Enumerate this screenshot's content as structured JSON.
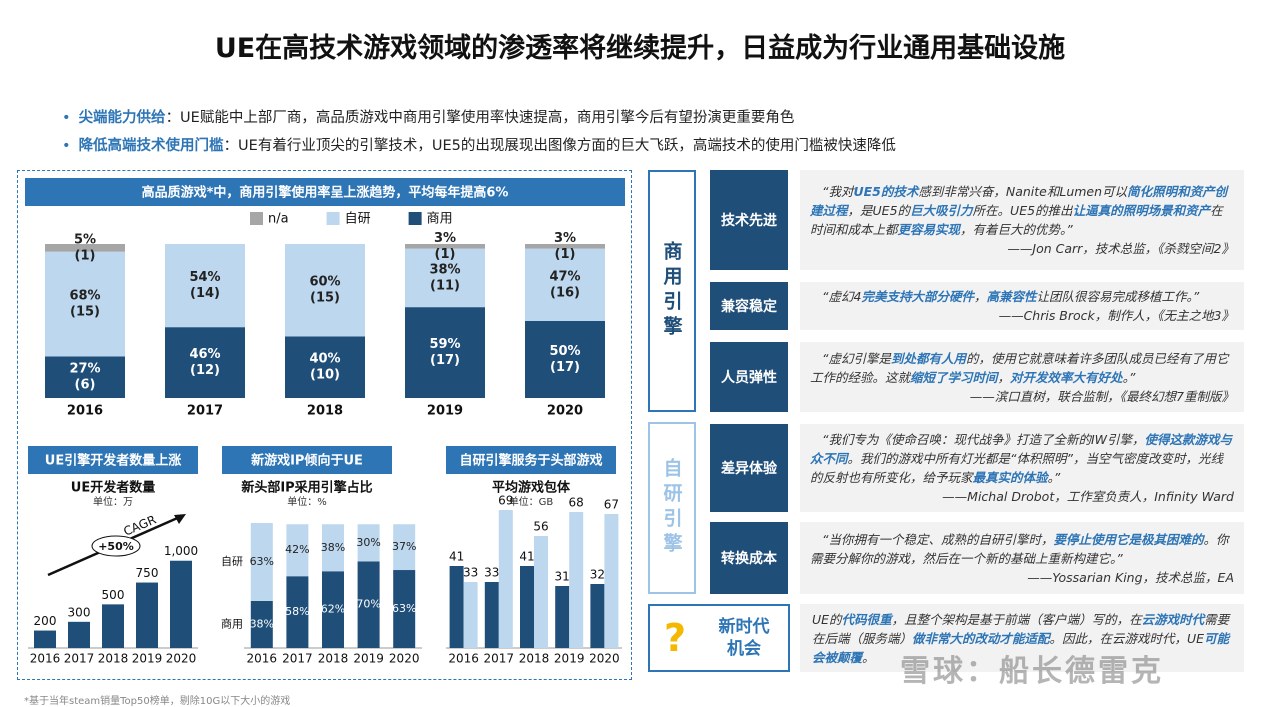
{
  "title": "UE在高技术游戏领域的渗透率将继续提升，日益成为行业通用基础设施",
  "bullets": [
    {
      "label": "尖端能力供给",
      "text": "：UE赋能中上部厂商，高品质游戏中商用引擎使用率快速提高，商用引擎今后有望扮演更重要角色"
    },
    {
      "label": "降低高端技术使用门槛",
      "text": "：UE有着行业顶尖的引擎技术，UE5的出现展现出图像方面的巨大飞跃，高端技术的使用门槛被快速降低"
    }
  ],
  "chart_data": [
    {
      "type": "bar",
      "stacked": true,
      "title": "高品质游戏*中，商用引擎使用率呈上涨趋势，平均每年提高6%",
      "categories": [
        "2016",
        "2017",
        "2018",
        "2019",
        "2020"
      ],
      "ylim": [
        0,
        100
      ],
      "series": [
        {
          "name": "n/a",
          "color": "#a6a6a6",
          "values": [
            5,
            null,
            null,
            3,
            3
          ],
          "value_labels": [
            "5%",
            null,
            null,
            "3%",
            "3%"
          ],
          "counts": [
            1,
            null,
            null,
            1,
            1
          ],
          "count_labels": [
            "(1)",
            null,
            null,
            "(1)",
            "(1)"
          ]
        },
        {
          "name": "自研",
          "color": "#bdd7ee",
          "values": [
            68,
            54,
            60,
            38,
            47
          ],
          "value_labels": [
            "68%",
            "54%",
            "60%",
            "38%",
            "47%"
          ],
          "counts": [
            15,
            14,
            15,
            11,
            16
          ],
          "count_labels": [
            "(15)",
            "(14)",
            "(15)",
            "(11)",
            "(16)"
          ]
        },
        {
          "name": "商用",
          "color": "#1f4e79",
          "values": [
            27,
            46,
            40,
            59,
            50
          ],
          "value_labels": [
            "27%",
            "46%",
            "40%",
            "59%",
            "50%"
          ],
          "counts": [
            6,
            12,
            10,
            17,
            17
          ],
          "count_labels": [
            "(6)",
            "(12)",
            "(10)",
            "(17)",
            "(17)"
          ]
        }
      ]
    },
    {
      "type": "bar",
      "title": "UE引擎开发者数量上涨",
      "subtitle": "UE开发者数量",
      "unit": "单位：万",
      "categories": [
        "2016",
        "2017",
        "2018",
        "2019",
        "2020"
      ],
      "values": [
        200,
        300,
        500,
        750,
        1000
      ],
      "value_labels": [
        "200",
        "300",
        "500",
        "750",
        "1,000"
      ],
      "color": "#1f4e79",
      "ylim": [
        0,
        1100
      ],
      "annotations": [
        "CAGR",
        "+50%"
      ]
    },
    {
      "type": "bar",
      "stacked": true,
      "title": "新游戏IP倾向于UE",
      "subtitle": "新头部IP采用引擎占比",
      "unit": "单位：%",
      "categories": [
        "2016",
        "2017",
        "2018",
        "2019",
        "2020"
      ],
      "ylim": [
        0,
        101
      ],
      "series": [
        {
          "name": "自研",
          "color": "#bdd7ee",
          "values": [
            63,
            42,
            38,
            30,
            37
          ],
          "value_labels": [
            "63%",
            "42%",
            "38%",
            "30%",
            "37%"
          ]
        },
        {
          "name": "商用",
          "color": "#1f4e79",
          "values": [
            38,
            58,
            62,
            70,
            63
          ],
          "value_labels": [
            "38%",
            "58%",
            "62%",
            "70%",
            "63%"
          ]
        }
      ]
    },
    {
      "type": "bar",
      "stacked": false,
      "title": "自研引擎服务于头部游戏",
      "subtitle": "平均游戏包体",
      "unit": "单位：GB",
      "categories": [
        "2016",
        "2017",
        "2018",
        "2019",
        "2020"
      ],
      "ylim": [
        0,
        75
      ],
      "series": [
        {
          "color": "#1f4e79",
          "values": [
            41,
            33,
            41,
            31,
            32
          ]
        },
        {
          "color": "#bdd7ee",
          "values": [
            33,
            69,
            56,
            68,
            67
          ]
        }
      ]
    }
  ],
  "panel": {
    "groups": [
      {
        "label": "商用引擎",
        "rows": [
          {
            "label": "技术先进",
            "quote": [
              "“我对",
              "UE5的技术",
              "感到非常兴奋，Nanite和Lumen可以",
              "简化照明和资产创建过程",
              "，是UE5的",
              "巨大吸引力",
              "所在。UE5的推出",
              "让逼真的照明场景和资产",
              "在时间和成本上都",
              "更容易实现",
              "，有着巨大的优势。”"
            ],
            "source": "——Jon Carr，技术总监，《杀戮空间2》"
          },
          {
            "label": "兼容稳定",
            "quote": [
              "“虚幻4",
              "完美支持大部分硬件",
              "，",
              "高兼容性",
              "让团队很容易完成移植工作。”"
            ],
            "source": "——Chris Brock，制作人，《无主之地3》"
          },
          {
            "label": "人员弹性",
            "quote": [
              "“虚幻引擎是",
              "到处都有人用",
              "的，使用它就意味着许多团队成员已经有了用它工作的经验。这就",
              "缩短了学习时间",
              "，",
              "对开发效率大有好处",
              "。”"
            ],
            "source": "——滨口直树，联合监制，《最终幻想7重制版》"
          }
        ]
      },
      {
        "label": "自研引擎",
        "rows": [
          {
            "label": "差异体验",
            "quote": [
              "“我们专为《使命召唤：现代战争》打造了全新的IW引擎，",
              "使得这款游戏与众不同",
              "。我们的游戏中所有灯光都是“体积照明”，当空气密度改变时，光线的反射也有所变化，给予玩家",
              "最真实的体验",
              "。”"
            ],
            "source": "——Michal Drobot，工作室负责人，Infinity Ward"
          },
          {
            "label": "转换成本",
            "quote": [
              "“当你拥有一个稳定、成熟的自研引擎时，",
              "要停止使用它是极其困难的",
              "。你需要分解你的游戏，然后在一个新的基础上重新构建它。”"
            ],
            "source": "——Yossarian King，技术总监，EA"
          }
        ]
      }
    ],
    "outlook": {
      "icon": "?",
      "label": "新时代机会",
      "quote": [
        "UE的",
        "代码很重",
        "，且整个架构是基于前端（客户端）写的，在",
        "云游戏时代",
        "需要在后端（服务端）",
        "做非常大的改动才能适配",
        "。因此，在云游戏时代，UE",
        "可能会被颠覆",
        "。"
      ]
    }
  },
  "footnote": "*基于当年steam销量Top50榜单，剔除10G以下大小的游戏",
  "watermark": "雪球：船长德雷克"
}
